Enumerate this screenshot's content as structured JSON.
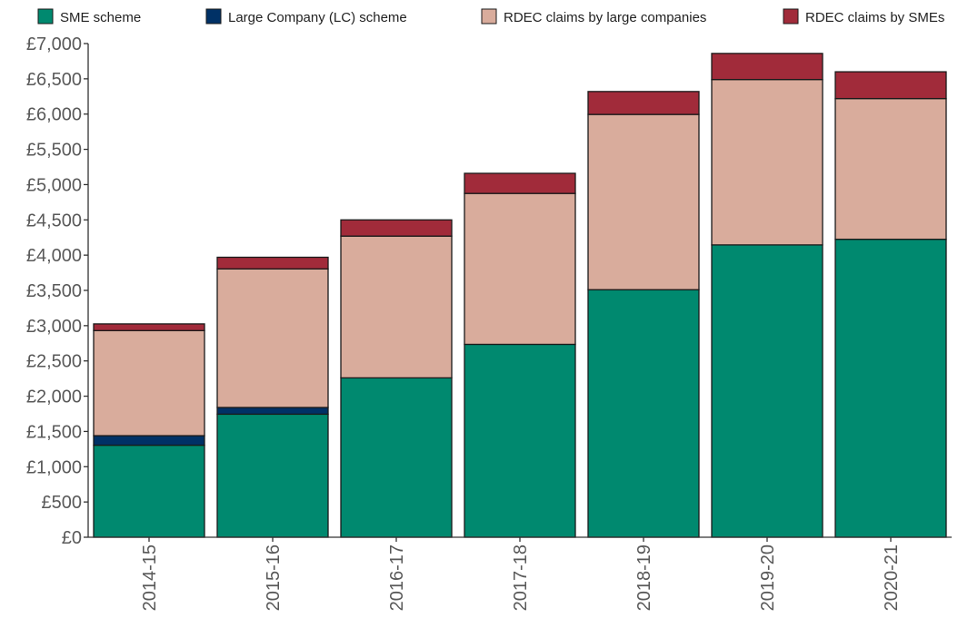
{
  "chart_data": {
    "type": "bar",
    "stacked": true,
    "categories": [
      "2014-15",
      "2015-16",
      "2016-17",
      "2017-18",
      "2018-19",
      "2019-20",
      "2020-21"
    ],
    "series": [
      {
        "name": "SME scheme",
        "color": "#00896f",
        "values": [
          1305,
          1745,
          2260,
          2735,
          3510,
          4145,
          4225
        ]
      },
      {
        "name": "Large Company (LC) scheme",
        "color": "#003166",
        "values": [
          135,
          95,
          0,
          0,
          0,
          0,
          0
        ]
      },
      {
        "name": "RDEC claims by large companies",
        "color": "#d9ac9c",
        "values": [
          1490,
          1965,
          2010,
          2140,
          2485,
          2345,
          1995
        ]
      },
      {
        "name": "RDEC claims by SMEs",
        "color": "#a12b3a",
        "values": [
          95,
          165,
          230,
          285,
          325,
          370,
          380
        ]
      }
    ],
    "y_ticks": [
      "£0",
      "£500",
      "£1,000",
      "£1,500",
      "£2,000",
      "£2,500",
      "£3,000",
      "£3,500",
      "£4,000",
      "£4,500",
      "£5,000",
      "£5,500",
      "£6,000",
      "£6,500",
      "£7,000"
    ],
    "ylim": [
      0,
      7000
    ],
    "ytick_step": 500,
    "grid": false,
    "legend_position": "top",
    "title": "",
    "xlabel": "",
    "ylabel": ""
  }
}
